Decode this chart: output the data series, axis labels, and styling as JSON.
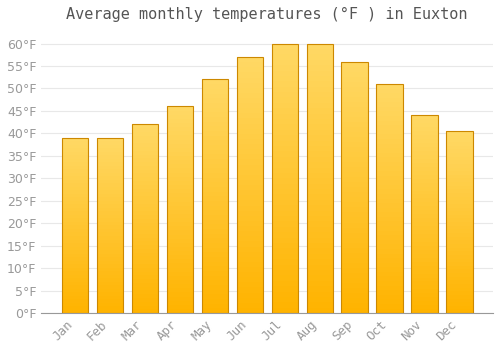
{
  "title": "Average monthly temperatures (°F ) in Euxton",
  "months": [
    "Jan",
    "Feb",
    "Mar",
    "Apr",
    "May",
    "Jun",
    "Jul",
    "Aug",
    "Sep",
    "Oct",
    "Nov",
    "Dec"
  ],
  "values": [
    39,
    39,
    42,
    46,
    52,
    57,
    60,
    60,
    56,
    51,
    44,
    40.5
  ],
  "bar_color_top": "#FFC84A",
  "bar_color_bottom": "#FFA800",
  "bar_edge_color": "#CC8800",
  "background_color": "#FFFFFF",
  "grid_color": "#E8E8E8",
  "ylim": [
    0,
    63
  ],
  "yticks": [
    0,
    5,
    10,
    15,
    20,
    25,
    30,
    35,
    40,
    45,
    50,
    55,
    60
  ],
  "title_fontsize": 11,
  "tick_fontsize": 9,
  "tick_color": "#999999",
  "title_color": "#555555"
}
